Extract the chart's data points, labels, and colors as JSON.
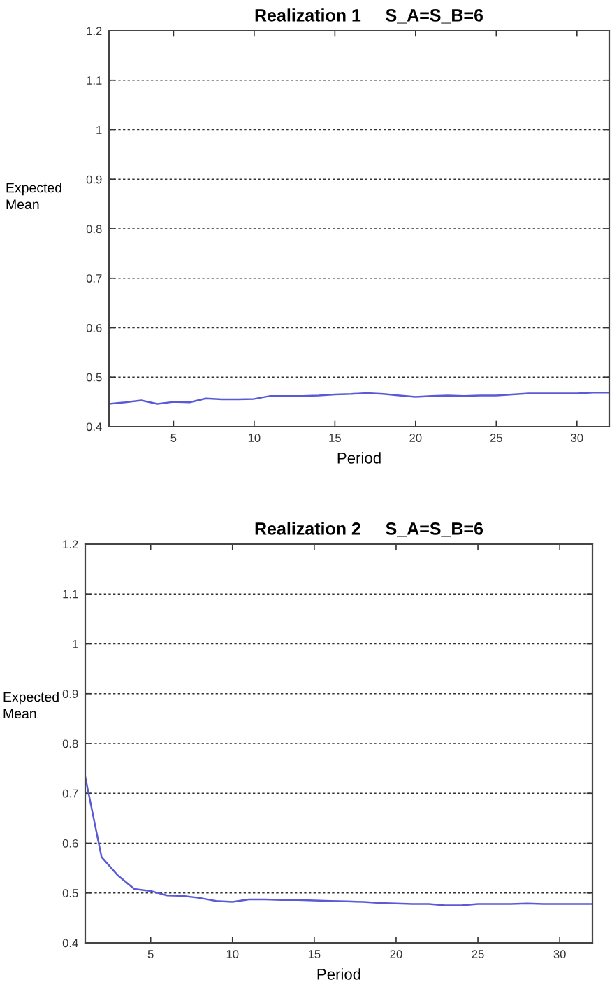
{
  "chart_data": [
    {
      "type": "line",
      "title": "Realization 1     S_A=S_B=6",
      "xlabel": "Period",
      "ylabel": "Expected\nMean",
      "x": [
        1,
        2,
        3,
        4,
        5,
        6,
        7,
        8,
        9,
        10,
        11,
        12,
        13,
        14,
        15,
        16,
        17,
        18,
        19,
        20,
        21,
        22,
        23,
        24,
        25,
        26,
        27,
        28,
        29,
        30,
        31,
        32
      ],
      "series": [
        {
          "color": "#5a5ad8",
          "values": [
            0.446,
            0.449,
            0.453,
            0.446,
            0.45,
            0.449,
            0.457,
            0.455,
            0.455,
            0.456,
            0.462,
            0.462,
            0.462,
            0.463,
            0.465,
            0.466,
            0.468,
            0.466,
            0.463,
            0.46,
            0.462,
            0.463,
            0.462,
            0.463,
            0.463,
            0.465,
            0.467,
            0.467,
            0.467,
            0.467,
            0.469,
            0.469
          ]
        }
      ],
      "xlim": [
        1,
        32
      ],
      "xticks": [
        5,
        10,
        15,
        20,
        25,
        30
      ],
      "ylim": [
        0.4,
        1.2
      ],
      "yticks": [
        0.4,
        0.5,
        0.6,
        0.7,
        0.8,
        0.9,
        1,
        1.1,
        1.2
      ],
      "grid": "y"
    },
    {
      "type": "line",
      "title": "Realization 2     S_A=S_B=6",
      "xlabel": "Period",
      "ylabel": "Expected\nMean",
      "x": [
        1,
        2,
        3,
        4,
        5,
        6,
        7,
        8,
        9,
        10,
        11,
        12,
        13,
        14,
        15,
        16,
        17,
        18,
        19,
        20,
        21,
        22,
        23,
        24,
        25,
        26,
        27,
        28,
        29,
        30,
        31,
        32
      ],
      "series": [
        {
          "color": "#5a5ad8",
          "values": [
            0.733,
            0.572,
            0.535,
            0.508,
            0.504,
            0.495,
            0.494,
            0.49,
            0.484,
            0.482,
            0.487,
            0.487,
            0.486,
            0.486,
            0.485,
            0.484,
            0.483,
            0.482,
            0.48,
            0.479,
            0.478,
            0.478,
            0.475,
            0.475,
            0.478,
            0.478,
            0.478,
            0.479,
            0.478,
            0.478,
            0.478,
            0.478
          ]
        }
      ],
      "xlim": [
        1,
        32
      ],
      "xticks": [
        5,
        10,
        15,
        20,
        25,
        30
      ],
      "ylim": [
        0.4,
        1.2
      ],
      "yticks": [
        0.4,
        0.5,
        0.6,
        0.7,
        0.8,
        0.9,
        1,
        1.1,
        1.2
      ],
      "grid": "y"
    }
  ]
}
